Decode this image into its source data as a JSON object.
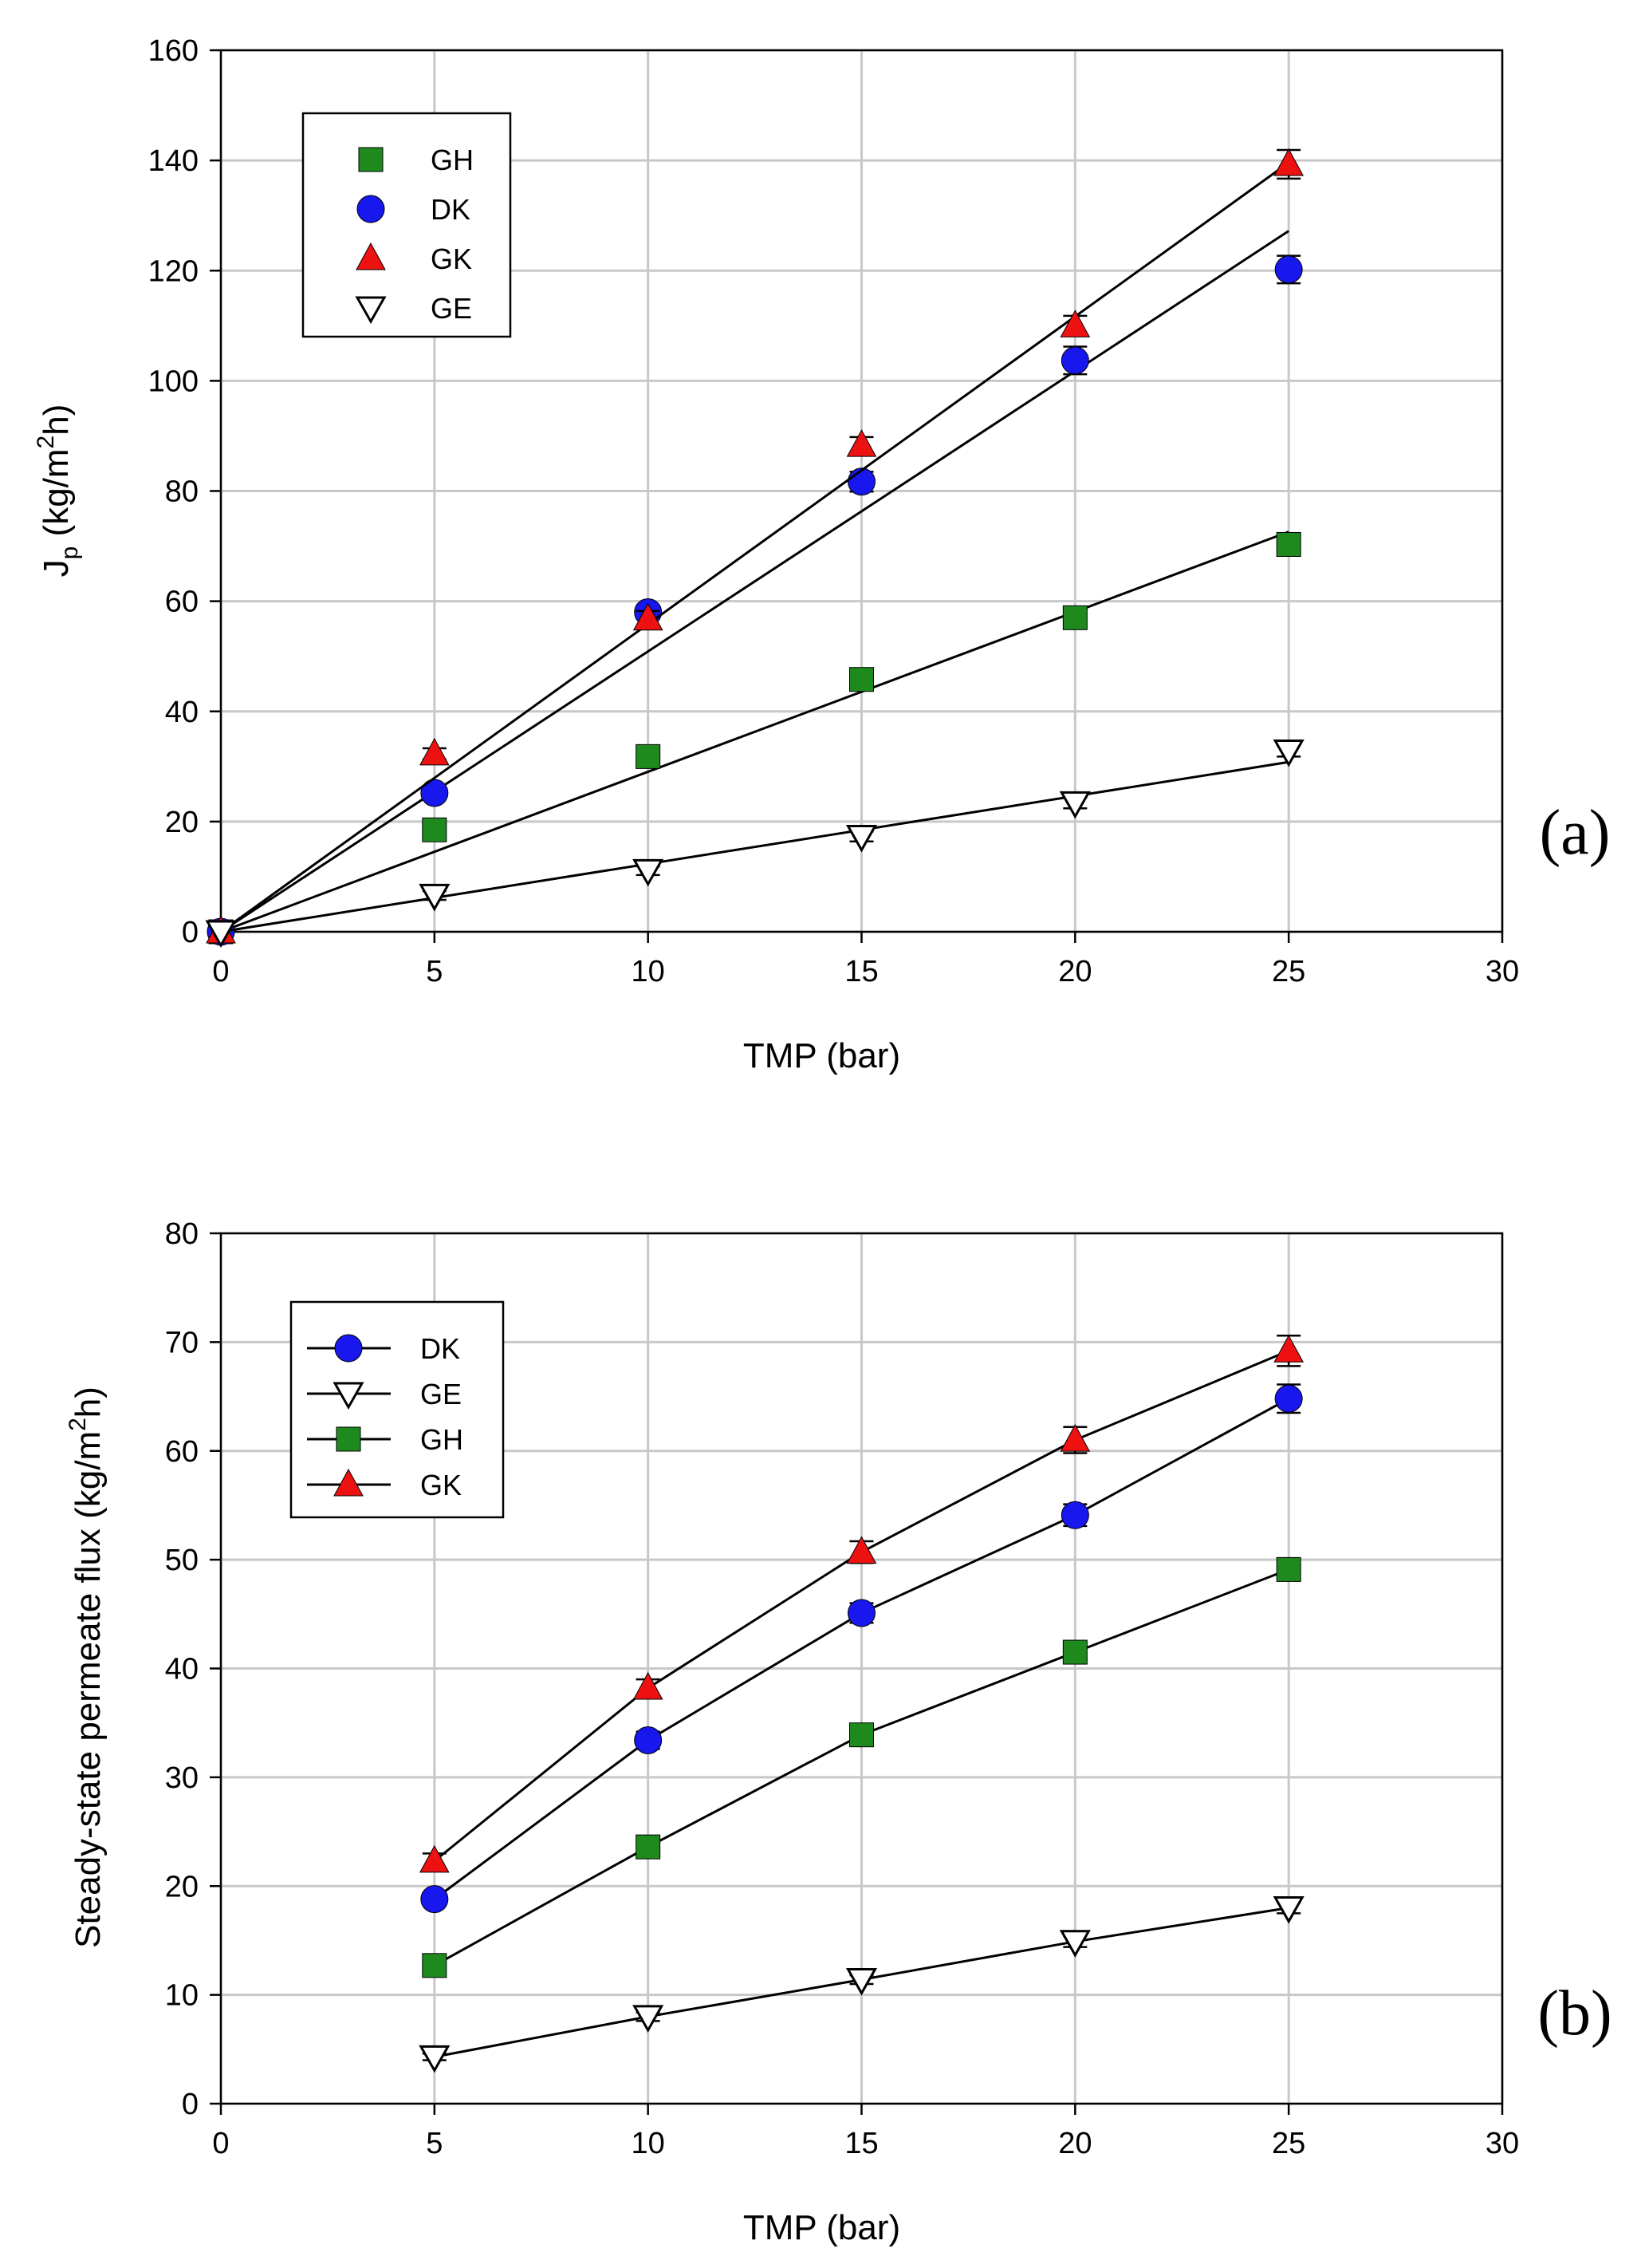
{
  "chart_data": [
    {
      "type": "scatter",
      "panel_label": "(a)",
      "xlabel": "TMP (bar)",
      "ylabel": {
        "main": "J",
        "sub": "p",
        "unit_pre": " (kg/m",
        "sup": "2",
        "unit_post": "h)"
      },
      "xlim": [
        0,
        30
      ],
      "ylim": [
        0,
        160
      ],
      "xticks": [
        "0",
        "5",
        "10",
        "15",
        "20",
        "25",
        "30"
      ],
      "yticks": [
        "0",
        "20",
        "40",
        "60",
        "80",
        "100",
        "120",
        "140",
        "160"
      ],
      "grid": true,
      "legend_position": "top-left",
      "legend_style": "markers-only",
      "legend_order": [
        "GH",
        "DK",
        "GK",
        "GE"
      ],
      "series": [
        {
          "name": "GH",
          "marker": "square",
          "color": "#1e8a1e",
          "x": [
            0,
            5,
            10,
            15,
            20,
            25
          ],
          "y": [
            0,
            18.5,
            31.8,
            45.8,
            57.0,
            70.3
          ],
          "err": [
            0,
            1.2,
            1.4,
            1.3,
            1.3,
            1.4
          ],
          "fit_line": {
            "x": [
              0,
              25
            ],
            "y": [
              0,
              72.6
            ]
          }
        },
        {
          "name": "DK",
          "marker": "circle",
          "color": "#1717ee",
          "x": [
            0,
            5,
            10,
            15,
            20,
            25
          ],
          "y": [
            0,
            25.2,
            58.0,
            81.7,
            103.7,
            120.2
          ],
          "err": [
            0,
            1.0,
            1.2,
            1.8,
            2.5,
            2.5
          ],
          "fit_line": {
            "x": [
              0,
              25
            ],
            "y": [
              0,
              127.2
            ]
          }
        },
        {
          "name": "GK",
          "marker": "triangle-up",
          "color": "#ee1111",
          "x": [
            0,
            5,
            10,
            15,
            20,
            25
          ],
          "y": [
            0,
            32.3,
            56.8,
            88.3,
            110.0,
            139.3
          ],
          "err": [
            0,
            1.0,
            1.4,
            1.5,
            1.8,
            2.6
          ],
          "fit_line": {
            "x": [
              0,
              25
            ],
            "y": [
              0,
              139.6
            ]
          }
        },
        {
          "name": "GE",
          "marker": "triangle-down-open",
          "color": "#000000",
          "x": [
            0,
            5,
            10,
            15,
            20,
            25
          ],
          "y": [
            0,
            6.6,
            11.1,
            17.3,
            23.4,
            32.8
          ],
          "err": [
            0,
            0.8,
            0.8,
            0.9,
            1.0,
            1.0
          ],
          "fit_line": {
            "x": [
              0,
              25
            ],
            "y": [
              0,
              30.8
            ]
          }
        }
      ]
    },
    {
      "type": "line",
      "panel_label": "(b)",
      "xlabel": "TMP (bar)",
      "ylabel": {
        "main": "Steady-state permeate flux (kg/m",
        "sub": "",
        "unit_pre": "",
        "sup": "2",
        "unit_post": "h)"
      },
      "xlim": [
        0,
        30
      ],
      "ylim": [
        0,
        80
      ],
      "xticks": [
        "0",
        "5",
        "10",
        "15",
        "20",
        "25",
        "30"
      ],
      "yticks": [
        "0",
        "10",
        "20",
        "30",
        "40",
        "50",
        "60",
        "70",
        "80"
      ],
      "grid": true,
      "legend_position": "top-left",
      "legend_style": "line-and-marker",
      "legend_order": [
        "DK",
        "GE",
        "GH",
        "GK"
      ],
      "series": [
        {
          "name": "DK",
          "marker": "circle",
          "color": "#1717ee",
          "x": [
            5,
            10,
            15,
            20,
            25
          ],
          "y": [
            18.8,
            33.4,
            45.1,
            54.1,
            64.8
          ],
          "err": [
            0.6,
            0.8,
            0.9,
            1.0,
            1.3
          ]
        },
        {
          "name": "GE",
          "marker": "triangle-down-open",
          "color": "#000000",
          "x": [
            5,
            10,
            15,
            20,
            25
          ],
          "y": [
            4.3,
            8.0,
            11.4,
            14.9,
            18.0
          ],
          "err": [
            0.3,
            0.4,
            0.4,
            0.5,
            0.5
          ]
        },
        {
          "name": "GH",
          "marker": "square",
          "color": "#1e8a1e",
          "x": [
            5,
            10,
            15,
            20,
            25
          ],
          "y": [
            12.7,
            23.6,
            33.9,
            41.5,
            49.1
          ],
          "err": [
            0.5,
            0.6,
            0.7,
            0.8,
            0.8
          ]
        },
        {
          "name": "GK",
          "marker": "triangle-up",
          "color": "#ee1111",
          "x": [
            5,
            10,
            15,
            20,
            25
          ],
          "y": [
            22.3,
            38.2,
            50.7,
            61.0,
            69.2
          ],
          "err": [
            0.7,
            0.8,
            1.0,
            1.2,
            1.4
          ]
        }
      ]
    }
  ]
}
